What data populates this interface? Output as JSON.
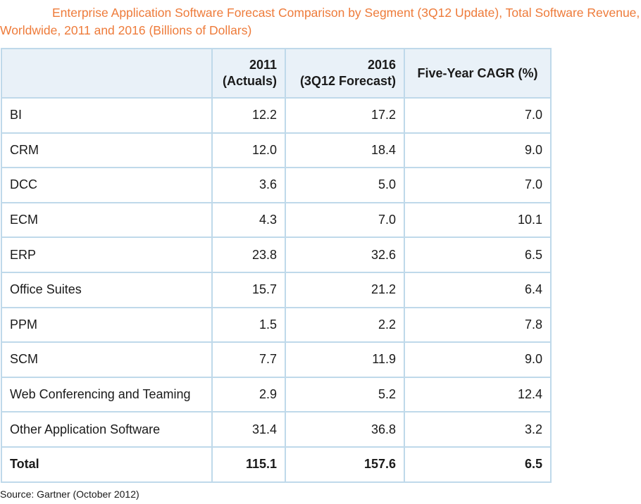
{
  "title": "Enterprise Application Software Forecast Comparison by Segment (3Q12 Update), Total Software Revenue, Worldwide, 2011 and 2016 (Billions of Dollars)",
  "source": "Source: Gartner (October 2012)",
  "colors": {
    "title": "#ee7b3a",
    "border": "#bfd9ea",
    "header_bg": "#e9f1f8"
  },
  "chart_data": {
    "type": "table",
    "title": "Enterprise Application Software Forecast Comparison by Segment (3Q12 Update), Total Software Revenue, Worldwide, 2011 and 2016 (Billions of Dollars)",
    "columns": [
      {
        "line1": "",
        "line2": ""
      },
      {
        "line1": "2011",
        "line2": "(Actuals)"
      },
      {
        "line1": "2016",
        "line2": "(3Q12 Forecast)"
      },
      {
        "line1": "Five-Year CAGR (%)",
        "line2": ""
      }
    ],
    "rows": [
      {
        "segment": "BI",
        "v2011": "12.2",
        "v2016": "17.2",
        "cagr": "7.0"
      },
      {
        "segment": "CRM",
        "v2011": "12.0",
        "v2016": "18.4",
        "cagr": "9.0"
      },
      {
        "segment": "DCC",
        "v2011": "3.6",
        "v2016": "5.0",
        "cagr": "7.0"
      },
      {
        "segment": "ECM",
        "v2011": "4.3",
        "v2016": "7.0",
        "cagr": "10.1"
      },
      {
        "segment": "ERP",
        "v2011": "23.8",
        "v2016": "32.6",
        "cagr": "6.5"
      },
      {
        "segment": "Office Suites",
        "v2011": "15.7",
        "v2016": "21.2",
        "cagr": "6.4"
      },
      {
        "segment": "PPM",
        "v2011": "1.5",
        "v2016": "2.2",
        "cagr": "7.8"
      },
      {
        "segment": "SCM",
        "v2011": "7.7",
        "v2016": "11.9",
        "cagr": "9.0"
      },
      {
        "segment": "Web Conferencing and Teaming",
        "v2011": "2.9",
        "v2016": "5.2",
        "cagr": "12.4"
      },
      {
        "segment": "Other Application Software",
        "v2011": "31.4",
        "v2016": "36.8",
        "cagr": "3.2"
      }
    ],
    "total": {
      "segment": "Total",
      "v2011": "115.1",
      "v2016": "157.6",
      "cagr": "6.5"
    }
  }
}
